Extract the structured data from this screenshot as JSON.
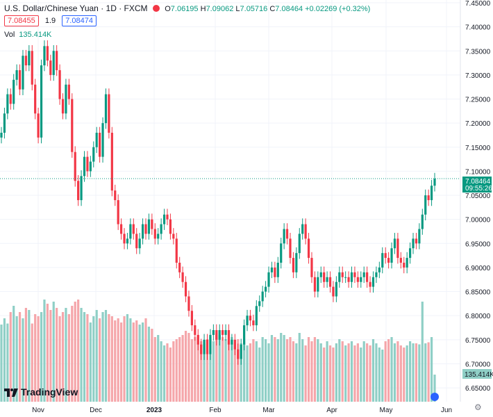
{
  "header": {
    "title": "U.S. Dollar/Chinese Yuan · 1D · FXCM",
    "labels": {
      "o": "O",
      "h": "H",
      "l": "L",
      "c": "C"
    },
    "values": {
      "o": "7.06195",
      "h": "7.09062",
      "l": "7.05716",
      "c": "7.08464",
      "change": "+0.02269 (+0.32%)"
    },
    "sell": "7.08455",
    "spread": "1.9",
    "buy": "7.08474",
    "vol_label": "Vol",
    "vol_value": "135.414K"
  },
  "brand": "TradingView",
  "colors": {
    "up": "#089981",
    "down": "#f23645",
    "up_vol": "#8fcfc6",
    "down_vol": "#f5a6aa",
    "axis_text": "#131722",
    "grid": "#f0f3fa"
  },
  "chart_data": {
    "type": "candlestick",
    "symbol": "USDCNH",
    "timeframe": "1D",
    "ylim": [
      6.64,
      7.45
    ],
    "y_ticks": [
      "7.45000",
      "7.40000",
      "7.35000",
      "7.30000",
      "7.25000",
      "7.20000",
      "7.15000",
      "7.10000",
      "7.05000",
      "7.00000",
      "6.95000",
      "6.90000",
      "6.85000",
      "6.80000",
      "6.75000",
      "6.70000",
      "6.65000"
    ],
    "x_labels": [
      "Nov",
      "Dec",
      "2023",
      "Feb",
      "Mar",
      "Apr",
      "May",
      "Jun"
    ],
    "last_price": "7.08464",
    "countdown": "09:55:26",
    "volume_last": "135.414K",
    "closes": [
      7.18,
      7.22,
      7.26,
      7.24,
      7.29,
      7.31,
      7.27,
      7.34,
      7.32,
      7.35,
      7.28,
      7.22,
      7.17,
      7.32,
      7.36,
      7.33,
      7.3,
      7.35,
      7.31,
      7.25,
      7.22,
      7.28,
      7.25,
      7.14,
      7.08,
      7.04,
      7.09,
      7.13,
      7.1,
      7.12,
      7.15,
      7.18,
      7.13,
      7.2,
      7.26,
      7.18,
      7.06,
      7.04,
      6.99,
      6.97,
      6.95,
      6.96,
      6.99,
      6.97,
      6.94,
      6.96,
      6.99,
      6.97,
      7.0,
      6.98,
      6.96,
      6.97,
      6.99,
      7.01,
      7.0,
      6.97,
      6.96,
      6.91,
      6.89,
      6.87,
      6.84,
      6.81,
      6.78,
      6.76,
      6.74,
      6.72,
      6.75,
      6.72,
      6.76,
      6.77,
      6.75,
      6.77,
      6.76,
      6.77,
      6.74,
      6.75,
      6.73,
      6.71,
      6.74,
      6.78,
      6.8,
      6.79,
      6.78,
      6.82,
      6.83,
      6.85,
      6.86,
      6.89,
      6.9,
      6.88,
      6.91,
      6.95,
      6.98,
      6.96,
      6.92,
      6.89,
      6.93,
      6.97,
      6.99,
      6.96,
      6.92,
      6.88,
      6.85,
      6.88,
      6.89,
      6.87,
      6.88,
      6.86,
      6.84,
      6.87,
      6.89,
      6.88,
      6.88,
      6.87,
      6.89,
      6.88,
      6.87,
      6.88,
      6.89,
      6.87,
      6.86,
      6.88,
      6.89,
      6.9,
      6.93,
      6.92,
      6.91,
      6.94,
      6.96,
      6.92,
      6.91,
      6.9,
      6.92,
      6.94,
      6.96,
      6.95,
      6.98,
      7.01,
      7.05,
      7.04,
      7.07,
      7.08464
    ],
    "volumes": [
      74,
      80,
      75,
      86,
      92,
      82,
      86,
      80,
      90,
      88,
      75,
      84,
      82,
      86,
      98,
      94,
      88,
      96,
      90,
      82,
      86,
      90,
      84,
      92,
      96,
      98,
      90,
      86,
      84,
      76,
      82,
      88,
      80,
      86,
      88,
      84,
      82,
      78,
      80,
      76,
      82,
      84,
      80,
      76,
      78,
      74,
      76,
      80,
      72,
      70,
      62,
      64,
      58,
      54,
      56,
      52,
      58,
      60,
      62,
      64,
      68,
      66,
      60,
      62,
      64,
      58,
      56,
      60,
      62,
      58,
      66,
      64,
      62,
      60,
      58,
      62,
      56,
      60,
      56,
      58,
      54,
      56,
      60,
      58,
      52,
      62,
      60,
      56,
      64,
      62,
      60,
      66,
      64,
      60,
      62,
      58,
      56,
      66,
      60,
      54,
      62,
      58,
      62,
      60,
      56,
      52,
      58,
      54,
      52,
      56,
      60,
      58,
      54,
      56,
      58,
      54,
      56,
      52,
      58,
      56,
      54,
      60,
      56,
      52,
      50,
      58,
      60,
      62,
      56,
      58,
      54,
      52,
      54,
      58,
      56,
      56,
      55,
      96,
      56,
      57,
      62,
      26
    ]
  }
}
